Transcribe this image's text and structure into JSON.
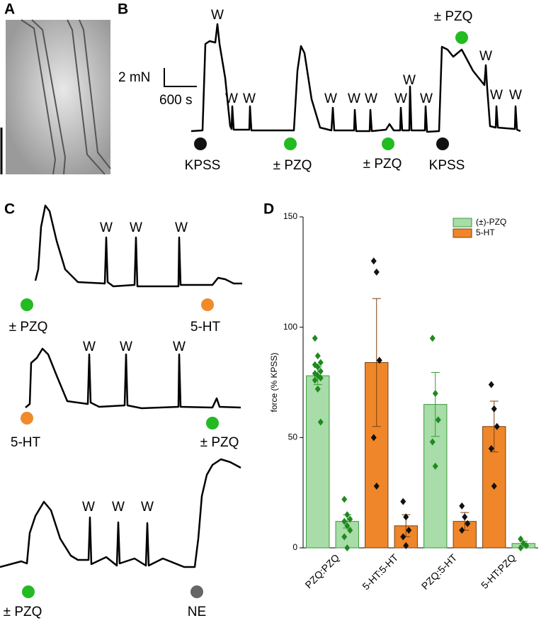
{
  "panel_a": {
    "label": "A"
  },
  "panel_b": {
    "label": "B",
    "scale_force": "2 mN",
    "scale_time": "600 s",
    "wash_labels": [
      "W",
      "W",
      "W",
      "W",
      "W",
      "W",
      "W",
      "W",
      "W",
      "W",
      "W",
      "W"
    ],
    "markers": [
      "KPSS",
      "± PZQ",
      "± PZQ",
      "KPSS"
    ],
    "top_marker": "± PZQ"
  },
  "panel_c": {
    "label": "C",
    "traces": [
      {
        "wash_labels": [
          "W",
          "W",
          "W"
        ],
        "markers": [
          "± PZQ",
          "5-HT"
        ]
      },
      {
        "wash_labels": [
          "W",
          "W",
          "W"
        ],
        "markers": [
          "5-HT",
          "± PZQ"
        ]
      },
      {
        "wash_labels": [
          "W",
          "W",
          "W"
        ],
        "markers": [
          "± PZQ",
          "NE"
        ]
      }
    ]
  },
  "chart_data": {
    "type": "bar",
    "label": "D",
    "y_label": "force (% KPSS)",
    "categories": [
      "PZQ:PZQ",
      null,
      "5-HT:5-HT",
      null,
      "PZQ:5-HT",
      null,
      "5-HT:PZQ",
      null
    ],
    "ylim": [
      0,
      150
    ],
    "yticks": [
      0,
      50,
      100,
      150
    ],
    "legend_position": "upper right",
    "series": [
      {
        "name": "(±)-PZQ",
        "color": "#a8dca8",
        "edgecolor": "#3a9a3a",
        "point_color": "#1f8a1f",
        "values": [
          78,
          12,
          null,
          null,
          65,
          null,
          null,
          2
        ],
        "errors": [
          4,
          3,
          null,
          null,
          14.5,
          null,
          null,
          1
        ],
        "points": [
          [
            95,
            87,
            84,
            83,
            82,
            80,
            79,
            78,
            77,
            76,
            72,
            57
          ],
          [
            22,
            15,
            13,
            12,
            10,
            8,
            5,
            0
          ],
          null,
          null,
          [
            95,
            70,
            58,
            48,
            37
          ],
          null,
          null,
          [
            4,
            2,
            1,
            0
          ]
        ]
      },
      {
        "name": "5-HT",
        "color": "#f0862a",
        "edgecolor": "#7a4010",
        "point_color": "#111111",
        "values": [
          null,
          null,
          84,
          10,
          null,
          12,
          55,
          null
        ],
        "errors": [
          null,
          null,
          29,
          5,
          null,
          4,
          11.5,
          null
        ],
        "points": [
          null,
          null,
          [
            130,
            125,
            85,
            50,
            28
          ],
          [
            21,
            14,
            8,
            5,
            1
          ],
          null,
          [
            19,
            14,
            11,
            8
          ],
          [
            74,
            63,
            55,
            45,
            28
          ],
          null
        ]
      }
    ]
  }
}
